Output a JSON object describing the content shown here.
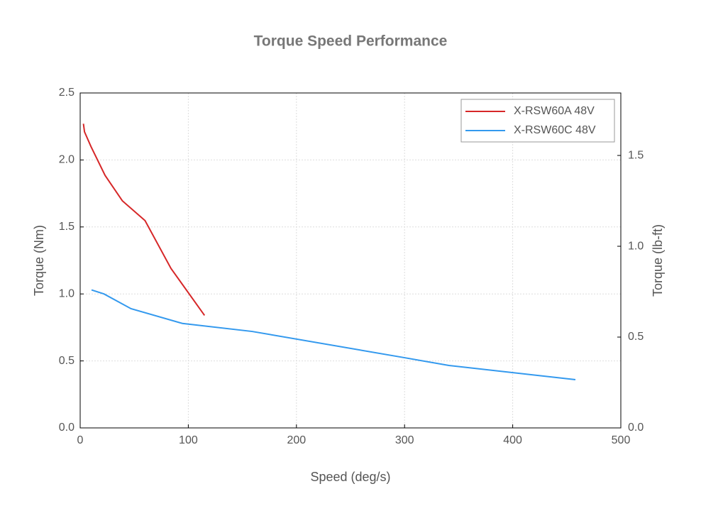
{
  "chart_data": {
    "type": "line",
    "title": "Torque Speed Performance",
    "x_label": "Speed (deg/s)",
    "y_label": "Torque (Nm)",
    "y2_label": "Torque (lb-ft)",
    "xlim": [
      0,
      500
    ],
    "xticks": [
      0,
      100,
      200,
      300,
      400,
      500
    ],
    "ylim": [
      0,
      2.5
    ],
    "yticks": [
      {
        "value": 0,
        "label": "0.0"
      },
      {
        "value": 0.5,
        "label": "0.5"
      },
      {
        "value": 1,
        "label": "1.0"
      },
      {
        "value": 1.5,
        "label": "1.5"
      },
      {
        "value": 2,
        "label": "2.0"
      },
      2.5
    ],
    "y2lim": [
      0,
      1.844
    ],
    "y2ticks": [
      {
        "value": 0,
        "label": "0.0"
      },
      0.5,
      {
        "value": 1,
        "label": "1.0"
      },
      1.5
    ],
    "grid": true,
    "legend": "upper right",
    "series": [
      {
        "name": "X-RSW60A 48V",
        "color": "#d62728",
        "x": [
          3,
          4,
          10,
          23,
          39,
          60,
          84,
          115
        ],
        "values": [
          2.27,
          2.21,
          2.1,
          1.885,
          1.695,
          1.547,
          1.19,
          0.84
        ]
      },
      {
        "name": "X-RSW60C 48V",
        "color": "#3399ee",
        "x": [
          10.5,
          22,
          47,
          94.5,
          159,
          300,
          341,
          458
        ],
        "values": [
          1.03,
          1.0,
          0.89,
          0.78,
          0.72,
          0.524,
          0.466,
          0.36
        ]
      }
    ]
  }
}
